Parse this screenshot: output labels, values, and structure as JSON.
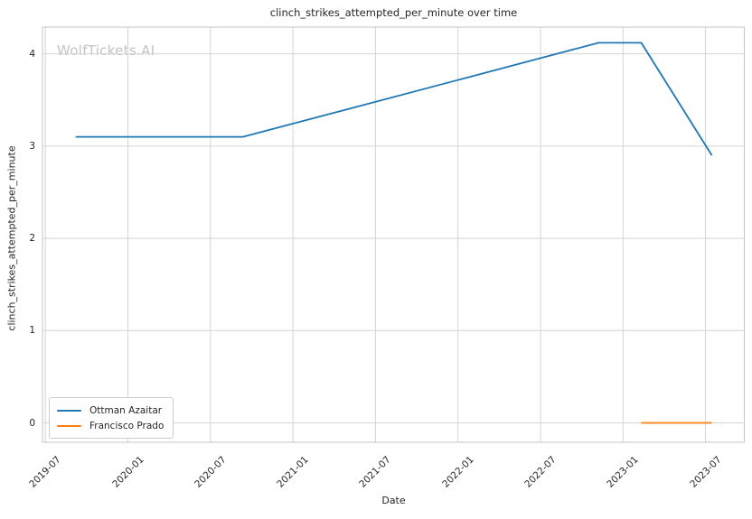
{
  "watermark": "WolfTickets.AI",
  "chart_data": {
    "type": "line",
    "title": "clinch_strikes_attempted_per_minute over time",
    "xlabel": "Date",
    "ylabel": "clinch_strikes_attempted_per_minute",
    "x_ticks": [
      "2019-07",
      "2020-01",
      "2020-07",
      "2021-01",
      "2021-07",
      "2022-01",
      "2022-07",
      "2023-01",
      "2023-07"
    ],
    "y_ticks": [
      "0",
      "1",
      "2",
      "3",
      "4"
    ],
    "xlim": [
      "2019-06-25",
      "2023-09-26"
    ],
    "ylim": [
      -0.21,
      4.29
    ],
    "grid": true,
    "grid_color": "#d4d4d4",
    "spine_color": "#c6c6c6",
    "legend_position": "lower left",
    "series": [
      {
        "name": "Ottman Azaitar",
        "color": "#1f77b4",
        "x": [
          "2019-09-07",
          "2020-09-12",
          "2022-11-08",
          "2023-02-11",
          "2023-07-15"
        ],
        "y": [
          3.1,
          3.1,
          4.12,
          4.12,
          2.9
        ]
      },
      {
        "name": "Francisco Prado",
        "color": "#ff7f0e",
        "x": [
          "2023-02-11",
          "2023-07-15"
        ],
        "y": [
          0.0,
          0.0
        ]
      }
    ]
  }
}
